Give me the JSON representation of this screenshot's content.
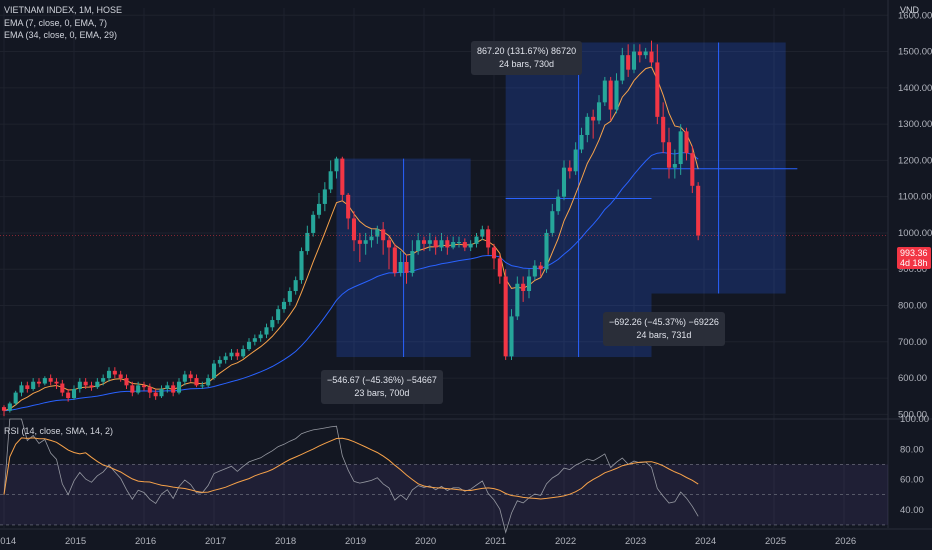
{
  "legend": {
    "symbol": "VIETNAM INDEX, 1M, HOSE",
    "ema_fast": "EMA (7, close, 0, EMA, 7)",
    "ema_slow": "EMA (34, close, 0, EMA, 29)",
    "rsi": "RSI (14, close, SMA, 14, 2)"
  },
  "currency": "VND",
  "last_price": "993.36",
  "last_price_sub": "4d 18h",
  "measurements": [
    {
      "line1": "−546.67 (−45.36%) −54667",
      "line2": "23 bars, 700d"
    },
    {
      "line1": "867.20 (131.67%) 86720",
      "line2": "24 bars, 730d"
    },
    {
      "line1": "−692.26 (−45.37%) −69226",
      "line2": "24 bars, 731d"
    }
  ],
  "colors": {
    "up": "#26a69a",
    "down": "#f23645",
    "ema_fast": "#f7a24a",
    "ema_slow": "#2962ff",
    "rsi": "#9598a1",
    "rsi_ma": "#f7a24a",
    "measure": "#2962ff"
  },
  "chart_data": {
    "type": "candlestick",
    "x_ticks": [
      "2014",
      "2015",
      "2016",
      "2017",
      "2018",
      "2019",
      "2020",
      "2021",
      "2022",
      "2023",
      "2024",
      "2025",
      "2026"
    ],
    "y_ticks": [
      "1600.00",
      "1500.00",
      "1400.00",
      "1300.00",
      "1200.00",
      "1100.00",
      "1000.00",
      "900.00",
      "800.00",
      "700.00",
      "600.00",
      "500.00"
    ],
    "ylim": [
      490,
      1620
    ],
    "rsi_ticks": [
      "100.00",
      "80.00",
      "60.00",
      "40.00"
    ],
    "rsi_ylim": [
      28,
      100
    ],
    "rsi_bands": [
      30,
      70
    ],
    "rsi_mid": 50,
    "candles": [
      [
        520,
        510,
        495,
        525
      ],
      [
        510,
        530,
        505,
        535
      ],
      [
        530,
        560,
        525,
        565
      ],
      [
        560,
        580,
        550,
        590
      ],
      [
        580,
        570,
        560,
        590
      ],
      [
        570,
        590,
        565,
        600
      ],
      [
        590,
        585,
        575,
        600
      ],
      [
        585,
        600,
        580,
        605
      ],
      [
        600,
        590,
        580,
        610
      ],
      [
        590,
        585,
        570,
        600
      ],
      [
        585,
        560,
        550,
        595
      ],
      [
        560,
        545,
        535,
        570
      ],
      [
        545,
        570,
        540,
        580
      ],
      [
        570,
        590,
        560,
        600
      ],
      [
        590,
        580,
        570,
        600
      ],
      [
        580,
        575,
        565,
        590
      ],
      [
        575,
        590,
        570,
        600
      ],
      [
        590,
        600,
        580,
        610
      ],
      [
        600,
        620,
        590,
        630
      ],
      [
        620,
        610,
        600,
        630
      ],
      [
        610,
        600,
        590,
        620
      ],
      [
        600,
        580,
        570,
        610
      ],
      [
        580,
        560,
        550,
        590
      ],
      [
        560,
        580,
        555,
        590
      ],
      [
        580,
        575,
        565,
        590
      ],
      [
        575,
        560,
        545,
        585
      ],
      [
        560,
        550,
        540,
        570
      ],
      [
        550,
        570,
        545,
        580
      ],
      [
        570,
        580,
        560,
        590
      ],
      [
        580,
        560,
        550,
        590
      ],
      [
        560,
        590,
        555,
        600
      ],
      [
        590,
        610,
        580,
        620
      ],
      [
        610,
        600,
        590,
        620
      ],
      [
        600,
        580,
        575,
        610
      ],
      [
        580,
        580,
        570,
        590
      ],
      [
        580,
        600,
        575,
        610
      ],
      [
        600,
        640,
        595,
        650
      ],
      [
        640,
        650,
        630,
        660
      ],
      [
        650,
        660,
        640,
        670
      ],
      [
        660,
        670,
        650,
        680
      ],
      [
        670,
        660,
        650,
        680
      ],
      [
        660,
        680,
        655,
        690
      ],
      [
        680,
        700,
        675,
        710
      ],
      [
        700,
        710,
        690,
        720
      ],
      [
        710,
        720,
        700,
        730
      ],
      [
        720,
        740,
        710,
        750
      ],
      [
        740,
        760,
        730,
        770
      ],
      [
        760,
        790,
        750,
        800
      ],
      [
        790,
        810,
        780,
        820
      ],
      [
        810,
        840,
        800,
        850
      ],
      [
        840,
        870,
        830,
        880
      ],
      [
        870,
        950,
        860,
        960
      ],
      [
        950,
        1000,
        940,
        1020
      ],
      [
        1000,
        1050,
        990,
        1060
      ],
      [
        1050,
        1080,
        1040,
        1110
      ],
      [
        1080,
        1120,
        1060,
        1140
      ],
      [
        1120,
        1170,
        1110,
        1200
      ],
      [
        1170,
        1205,
        1150,
        1210
      ],
      [
        1205,
        1105,
        1090,
        1210
      ],
      [
        1105,
        1040,
        1010,
        1110
      ],
      [
        1040,
        980,
        950,
        1060
      ],
      [
        980,
        970,
        920,
        1000
      ],
      [
        970,
        980,
        940,
        1000
      ],
      [
        980,
        990,
        960,
        1010
      ],
      [
        990,
        1010,
        970,
        1020
      ],
      [
        1010,
        980,
        940,
        1030
      ],
      [
        980,
        960,
        900,
        990
      ],
      [
        960,
        890,
        880,
        970
      ],
      [
        890,
        920,
        880,
        950
      ],
      [
        920,
        890,
        860,
        940
      ],
      [
        890,
        950,
        880,
        980
      ],
      [
        950,
        980,
        940,
        1000
      ],
      [
        980,
        970,
        950,
        990
      ],
      [
        970,
        980,
        950,
        1000
      ],
      [
        980,
        960,
        940,
        990
      ],
      [
        960,
        980,
        950,
        1000
      ],
      [
        980,
        960,
        940,
        990
      ],
      [
        960,
        975,
        955,
        990
      ],
      [
        975,
        975,
        960,
        990
      ],
      [
        975,
        960,
        950,
        985
      ],
      [
        960,
        970,
        950,
        980
      ],
      [
        970,
        990,
        960,
        1000
      ],
      [
        990,
        1010,
        980,
        1020
      ],
      [
        1010,
        960,
        940,
        1020
      ],
      [
        960,
        930,
        900,
        970
      ],
      [
        930,
        880,
        860,
        940
      ],
      [
        880,
        660,
        650,
        900
      ],
      [
        660,
        770,
        650,
        790
      ],
      [
        770,
        860,
        760,
        880
      ],
      [
        860,
        840,
        810,
        880
      ],
      [
        840,
        880,
        820,
        900
      ],
      [
        880,
        910,
        870,
        925
      ],
      [
        910,
        900,
        880,
        920
      ],
      [
        900,
        1000,
        890,
        1010
      ],
      [
        1000,
        1060,
        990,
        1080
      ],
      [
        1060,
        1100,
        1050,
        1120
      ],
      [
        1100,
        1180,
        1090,
        1200
      ],
      [
        1180,
        1170,
        1150,
        1200
      ],
      [
        1170,
        1230,
        1160,
        1250
      ],
      [
        1230,
        1270,
        1220,
        1290
      ],
      [
        1270,
        1320,
        1250,
        1330
      ],
      [
        1320,
        1310,
        1260,
        1340
      ],
      [
        1310,
        1360,
        1300,
        1380
      ],
      [
        1360,
        1420,
        1350,
        1430
      ],
      [
        1420,
        1340,
        1310,
        1430
      ],
      [
        1340,
        1420,
        1330,
        1440
      ],
      [
        1420,
        1490,
        1410,
        1510
      ],
      [
        1490,
        1450,
        1430,
        1520
      ],
      [
        1450,
        1500,
        1440,
        1520
      ],
      [
        1500,
        1490,
        1470,
        1520
      ],
      [
        1490,
        1500,
        1480,
        1510
      ],
      [
        1500,
        1470,
        1460,
        1530
      ],
      [
        1470,
        1320,
        1300,
        1520
      ],
      [
        1320,
        1250,
        1220,
        1360
      ],
      [
        1250,
        1180,
        1150,
        1290
      ],
      [
        1180,
        1190,
        1150,
        1230
      ],
      [
        1190,
        1280,
        1160,
        1300
      ],
      [
        1280,
        1220,
        1200,
        1290
      ],
      [
        1220,
        1130,
        1110,
        1240
      ],
      [
        1130,
        993,
        980,
        1140
      ]
    ],
    "measure_boxes": [
      {
        "from_index": 57,
        "to_index": 80,
        "top": 1205,
        "bottom": 658
      },
      {
        "from_index": 86,
        "to_index": 111,
        "top": 1525,
        "bottom": 658
      },
      {
        "from_index": 111,
        "to_index": 134,
        "top": 1525,
        "bottom": 833
      }
    ]
  }
}
